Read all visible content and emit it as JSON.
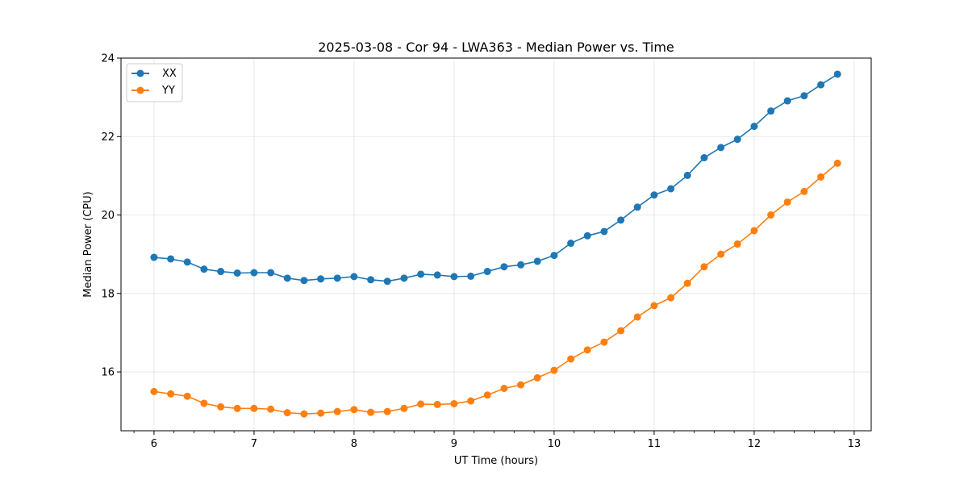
{
  "chart_data": {
    "type": "line",
    "title": "2025-03-08 - Cor 94 - LWA363 - Median Power vs. Time",
    "xlabel": "UT Time (hours)",
    "ylabel": "Median Power (CPU)",
    "xlim": [
      5.67,
      13.17
    ],
    "ylim": [
      14.5,
      24.0
    ],
    "xticks": [
      6,
      7,
      8,
      9,
      10,
      11,
      12,
      13
    ],
    "yticks": [
      16,
      18,
      20,
      22,
      24
    ],
    "grid": true,
    "legend_position": "top-left",
    "x": [
      6.0,
      6.167,
      6.333,
      6.5,
      6.667,
      6.833,
      7.0,
      7.167,
      7.333,
      7.5,
      7.667,
      7.833,
      8.0,
      8.167,
      8.333,
      8.5,
      8.667,
      8.833,
      9.0,
      9.167,
      9.333,
      9.5,
      9.667,
      9.833,
      10.0,
      10.167,
      10.333,
      10.5,
      10.667,
      10.833,
      11.0,
      11.167,
      11.333,
      11.5,
      11.667,
      11.833,
      12.0,
      12.167,
      12.333,
      12.5,
      12.667,
      12.833
    ],
    "series": [
      {
        "name": "XX",
        "color": "#1f77b4",
        "values": [
          18.92,
          18.88,
          18.8,
          18.62,
          18.56,
          18.52,
          18.53,
          18.53,
          18.39,
          18.33,
          18.37,
          18.39,
          18.43,
          18.35,
          18.31,
          18.39,
          18.49,
          18.47,
          18.43,
          18.44,
          18.56,
          18.68,
          18.73,
          18.82,
          18.97,
          19.28,
          19.47,
          19.58,
          19.87,
          20.2,
          20.51,
          20.67,
          21.01,
          21.46,
          21.72,
          21.93,
          22.26,
          22.65,
          22.91,
          23.04,
          23.32,
          23.59
        ]
      },
      {
        "name": "YY",
        "color": "#ff7f0e",
        "values": [
          15.5,
          15.44,
          15.38,
          15.2,
          15.11,
          15.07,
          15.07,
          15.05,
          14.96,
          14.93,
          14.95,
          14.99,
          15.04,
          14.97,
          14.99,
          15.07,
          15.18,
          15.17,
          15.19,
          15.26,
          15.41,
          15.58,
          15.67,
          15.85,
          16.04,
          16.33,
          16.56,
          16.76,
          17.05,
          17.4,
          17.69,
          17.89,
          18.26,
          18.68,
          19.0,
          19.26,
          19.6,
          20.0,
          20.33,
          20.6,
          20.97,
          21.32
        ]
      }
    ]
  }
}
